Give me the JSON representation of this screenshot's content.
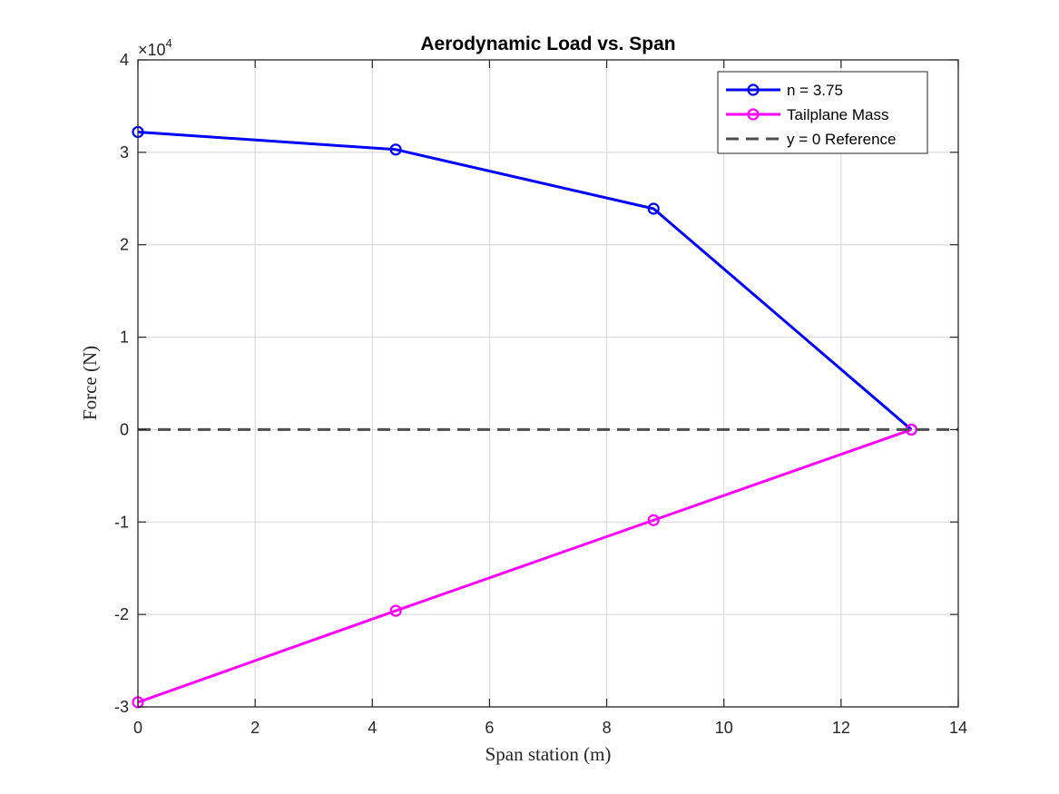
{
  "chart_data": {
    "type": "line",
    "title": "Aerodynamic Load vs. Span",
    "xlabel": "Span station (m)",
    "ylabel": "Force (N)",
    "xlim": [
      0,
      14
    ],
    "ylim": [
      -30000,
      40000
    ],
    "x_ticks": [
      0,
      2,
      4,
      6,
      8,
      10,
      12,
      14
    ],
    "x_tick_labels": [
      "0",
      "2",
      "4",
      "6",
      "8",
      "10",
      "12",
      "14"
    ],
    "y_ticks": [
      -30000,
      -20000,
      -10000,
      0,
      10000,
      20000,
      30000,
      40000
    ],
    "y_tick_labels": [
      "-3",
      "-2",
      "-1",
      "0",
      "1",
      "2",
      "3",
      "4"
    ],
    "y_exponent": {
      "base": "×10",
      "power": "4"
    },
    "grid": true,
    "legend_position": "top-right",
    "series": [
      {
        "name": "n = 3.75",
        "color": "#0000ff",
        "style": "solid",
        "marker": "circle",
        "x": [
          0,
          4.4,
          8.8,
          13.2
        ],
        "values": [
          32200,
          30300,
          23900,
          0
        ]
      },
      {
        "name": "Tailplane Mass",
        "color": "#ff00ff",
        "style": "solid",
        "marker": "circle",
        "x": [
          0,
          4.4,
          8.8,
          13.2
        ],
        "values": [
          -29500,
          -19600,
          -9800,
          0
        ]
      },
      {
        "name": "y = 0 Reference",
        "color": "#4d4d4d",
        "style": "dashed",
        "marker": "none",
        "x": [
          0,
          14
        ],
        "values": [
          0,
          0
        ]
      }
    ]
  }
}
